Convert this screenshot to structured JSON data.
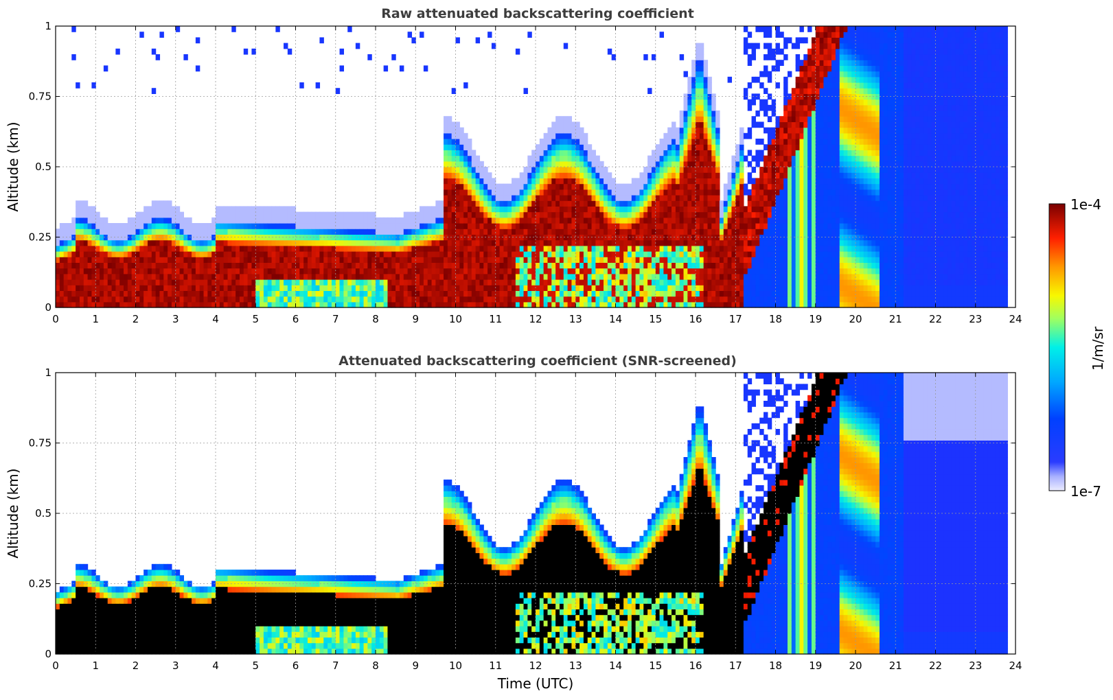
{
  "chart_data": [
    {
      "type": "heatmap",
      "title": "Raw attenuated backscattering coefficient",
      "xlabel": "",
      "ylabel": "Altitude (km)",
      "xlim": [
        0,
        24
      ],
      "ylim": [
        0,
        1
      ],
      "x_ticks": [
        "0",
        "1",
        "2",
        "3",
        "4",
        "5",
        "6",
        "7",
        "8",
        "9",
        "10",
        "11",
        "12",
        "13",
        "14",
        "15",
        "16",
        "17",
        "18",
        "19",
        "20",
        "21",
        "22",
        "23",
        "24"
      ],
      "y_ticks": [
        "0",
        "0.25",
        "0.5",
        "0.75",
        "1"
      ],
      "grid": true,
      "data_end_x": 23.8,
      "screened": false
    },
    {
      "type": "heatmap",
      "title": "Attenuated backscattering coefficient (SNR-screened)",
      "xlabel": "Time (UTC)",
      "ylabel": "Altitude (km)",
      "xlim": [
        0,
        24
      ],
      "ylim": [
        0,
        1
      ],
      "x_ticks": [
        "0",
        "1",
        "2",
        "3",
        "4",
        "5",
        "6",
        "7",
        "8",
        "9",
        "10",
        "11",
        "12",
        "13",
        "14",
        "15",
        "16",
        "17",
        "18",
        "19",
        "20",
        "21",
        "22",
        "23",
        "24"
      ],
      "y_ticks": [
        "0",
        "0.25",
        "0.5",
        "0.75",
        "1"
      ],
      "grid": true,
      "data_end_x": 23.8,
      "screened": true
    }
  ],
  "colorbar": {
    "label": "1/m/sr",
    "max_label": "1e-4",
    "min_label": "1e-7",
    "colormap": "jet",
    "scale": "log"
  },
  "colors": {
    "low": "#e8e8ff",
    "blue": "#1530ff",
    "cyan": "#00e0ff",
    "yellow": "#f5f500",
    "red": "#ff2000",
    "darkred": "#800000",
    "saturated": "#000000"
  }
}
